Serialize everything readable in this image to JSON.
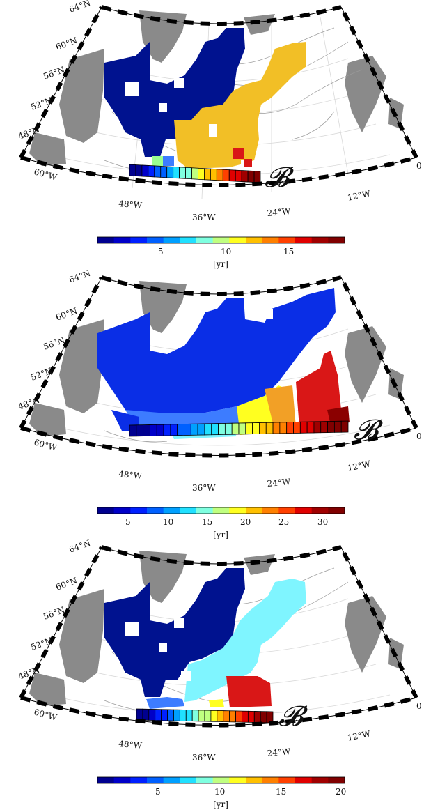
{
  "figure": {
    "panels": [
      {
        "id": "top",
        "lat_labels": [
          "64°N",
          "60°N",
          "56°N",
          "52°N",
          "48°N"
        ],
        "lon_labels": [
          "60°W",
          "48°W",
          "36°W",
          "24°W",
          "12°W",
          "0"
        ],
        "region_label": "𝓑",
        "colorbar": {
          "ticks": [
            "5",
            "10",
            "15"
          ],
          "unit": "[yr]",
          "range": [
            0,
            20
          ]
        }
      },
      {
        "id": "middle",
        "lat_labels": [
          "64°N",
          "60°N",
          "56°N",
          "52°N",
          "48°N"
        ],
        "lon_labels": [
          "60°W",
          "48°W",
          "36°W",
          "24°W",
          "12°W",
          "0"
        ],
        "region_label": "𝓑",
        "colorbar": {
          "ticks": [
            "5",
            "10",
            "15",
            "20",
            "25",
            "30"
          ],
          "unit": "[yr]",
          "range": [
            0,
            32
          ]
        }
      },
      {
        "id": "bottom",
        "lat_labels": [
          "64°N",
          "60°N",
          "56°N",
          "52°N",
          "48°N"
        ],
        "lon_labels": [
          "60°W",
          "48°W",
          "36°W",
          "24°W",
          "12°W",
          "0"
        ],
        "region_label": "𝓑",
        "colorbar": {
          "ticks": [
            "5",
            "10",
            "15",
            "20"
          ],
          "unit": "[yr]",
          "range": [
            0,
            20
          ]
        }
      }
    ],
    "colors": {
      "land": "#8a8a8a",
      "frame_black": "#000000",
      "frame_white": "#ffffff",
      "contour": "#9a9a9a",
      "grid": "#d8d8d8",
      "dark_blue": "#00128f",
      "blue": "#0a2ee6",
      "light_blue": "#3d7cff",
      "cyan": "#7ff5ff",
      "orange": "#f2bf26",
      "red": "#d91717",
      "dark_red": "#8b0000"
    },
    "colormap": [
      "#00008f",
      "#0000c8",
      "#0020ff",
      "#0060ff",
      "#00a0ff",
      "#20e0ff",
      "#7fffe0",
      "#c0ff80",
      "#ffff20",
      "#ffc000",
      "#ff8000",
      "#ff4000",
      "#e00000",
      "#a00000",
      "#800000"
    ]
  }
}
